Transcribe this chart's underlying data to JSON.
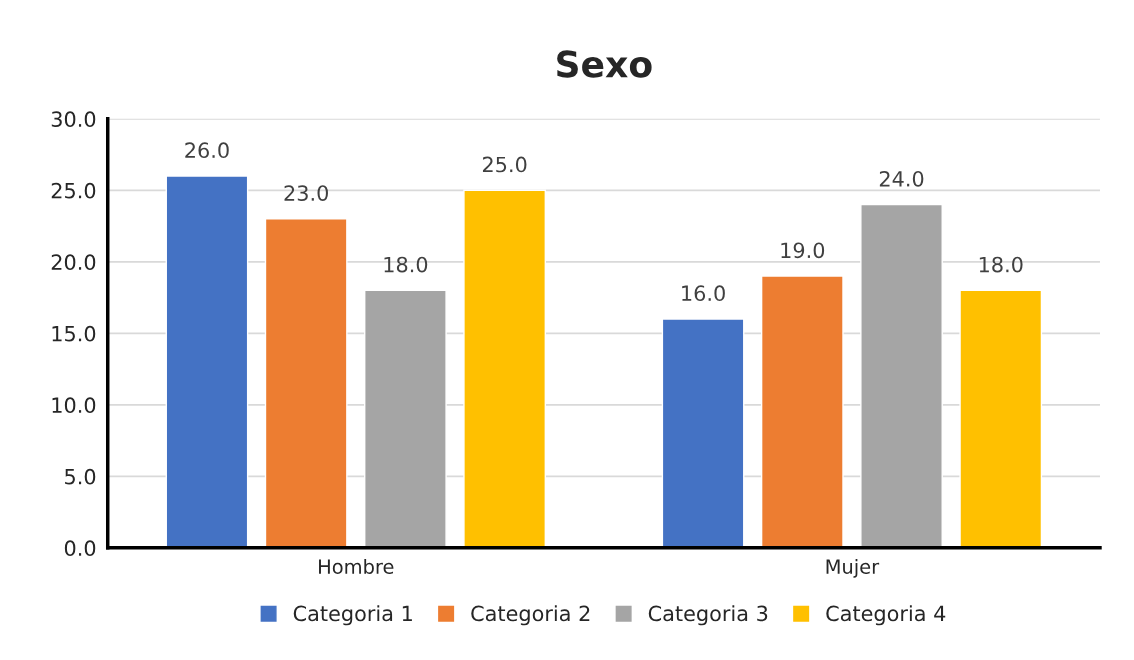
{
  "chart_data": {
    "type": "bar",
    "title": "Sexo",
    "categories": [
      "Hombre",
      "Mujer"
    ],
    "series": [
      {
        "name": "Categoria 1",
        "color": "#4472c4",
        "values": [
          26,
          16
        ],
        "value_labels": [
          "26.0",
          "16.0"
        ]
      },
      {
        "name": "Categoria 2",
        "color": "#ed7d31",
        "values": [
          23,
          19
        ],
        "value_labels": [
          "23.0",
          "19.0"
        ]
      },
      {
        "name": "Categoria 3",
        "color": "#a5a5a5",
        "values": [
          18,
          24
        ],
        "value_labels": [
          "18.0",
          "24.0"
        ]
      },
      {
        "name": "Categoria 4",
        "color": "#ffc000",
        "values": [
          25,
          18
        ],
        "value_labels": [
          "25.0",
          "18.0"
        ]
      }
    ],
    "ylim": [
      0,
      30
    ],
    "yticks": [
      {
        "value": 0,
        "label": "0.0"
      },
      {
        "value": 5,
        "label": "5.0"
      },
      {
        "value": 10,
        "label": "10.0"
      },
      {
        "value": 15,
        "label": "15.0"
      },
      {
        "value": 20,
        "label": "20.0"
      },
      {
        "value": 25,
        "label": "25.0"
      },
      {
        "value": 30,
        "label": "30.0"
      }
    ],
    "grid": "y",
    "legend": "bottom"
  }
}
